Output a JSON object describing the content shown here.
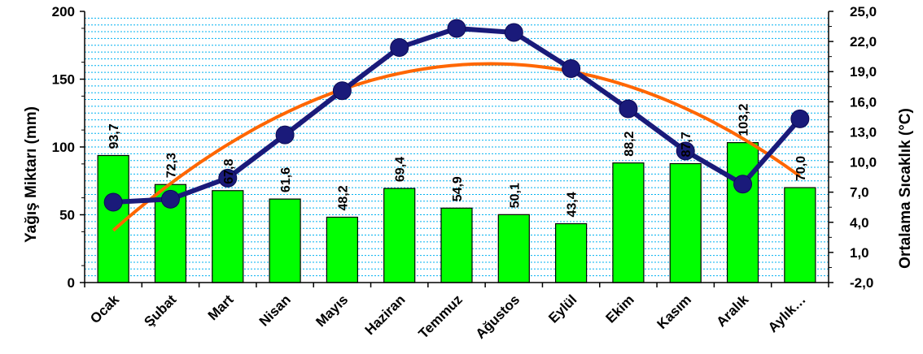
{
  "chart_data": {
    "type": "bar",
    "categories": [
      "Ocak",
      "Şubat",
      "Mart",
      "Nisan",
      "Mayıs",
      "Haziran",
      "Temmuz",
      "Ağustos",
      "Eylül",
      "Ekim",
      "Kasım",
      "Aralık",
      "Aylık…"
    ],
    "bar_series": {
      "values": [
        93.7,
        72.3,
        67.8,
        61.6,
        48.2,
        69.4,
        54.9,
        50.1,
        43.4,
        88.2,
        87.7,
        103.2,
        70.0
      ],
      "labels": [
        "93,7",
        "72,3",
        "67,8",
        "61,6",
        "48,2",
        "69,4",
        "54,9",
        "50,1",
        "43,4",
        "88,2",
        "87,7",
        "103,2",
        "70,0"
      ],
      "color": "#00ff00"
    },
    "line_series": {
      "values": [
        6.0,
        6.3,
        8.4,
        12.7,
        17.1,
        21.4,
        23.3,
        22.9,
        19.3,
        15.3,
        11.1,
        7.8,
        14.3
      ],
      "color": "#1a1a7a"
    },
    "trend_line": {
      "type": "polynomial",
      "color": "#ff6600"
    },
    "ylabel": "Yağış Miktarı (mm)",
    "ylabel_right": "Ortalama Sıcaklık (°C)",
    "ylim": [
      0,
      200
    ],
    "yticks": [
      "0",
      "50",
      "100",
      "150",
      "200"
    ],
    "ylim_right": [
      -2.0,
      25.0
    ],
    "yticks_right": [
      "-2,0",
      "1,0",
      "4,0",
      "7,0",
      "10,0",
      "13,0",
      "16,0",
      "19,0",
      "22,0",
      "25,0"
    ],
    "grid": true,
    "grid_color": "#00b0f0",
    "legend": "none"
  }
}
